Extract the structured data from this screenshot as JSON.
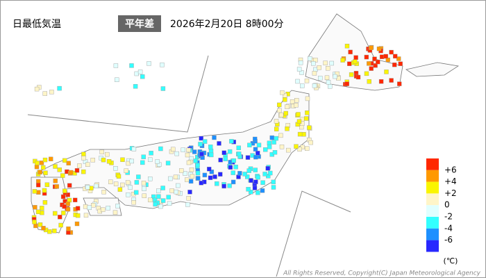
{
  "header": {
    "title": "日最低気温",
    "badge": "平年差",
    "datetime": "2026年2月20日 8時00分"
  },
  "legend": {
    "colors": [
      "#ff2800",
      "#ff9900",
      "#faf500",
      "#fff5c8",
      "#e0ffff",
      "#33ffff",
      "#1e90ff",
      "#2828ff"
    ],
    "labels": [
      "+6",
      "+4",
      "+2",
      "0",
      "-2",
      "-4",
      "-6"
    ],
    "unit": "(℃)"
  },
  "footer": {
    "copyright": "All Rights Reserved, Copyright(C) Japan Meteorological Agency"
  }
}
